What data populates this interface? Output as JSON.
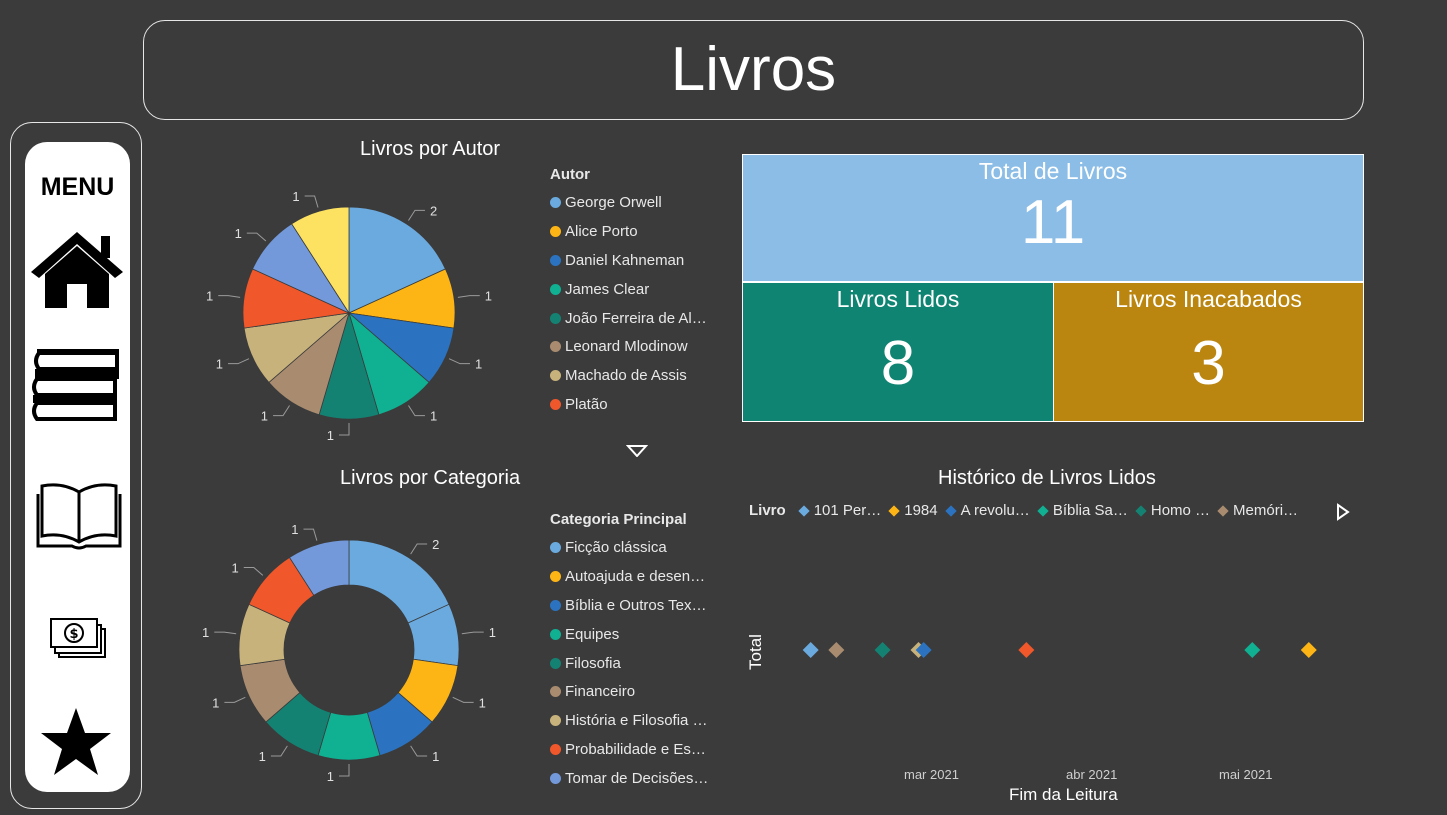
{
  "header": {
    "title": "Livros"
  },
  "sidebar": {
    "menu_label": "MENU",
    "items": [
      {
        "icon": "home-icon"
      },
      {
        "icon": "books-icon"
      },
      {
        "icon": "open-book-icon"
      },
      {
        "icon": "money-icon"
      },
      {
        "icon": "star-icon"
      }
    ]
  },
  "author_chart": {
    "title": "Livros por Autor",
    "legend_title": "Autor",
    "legend": [
      "George Orwell",
      "Alice Porto",
      "Daniel Kahneman",
      "James Clear",
      "João Ferreira de Al…",
      "Leonard Mlodinow",
      "Machado de Assis",
      "Platão"
    ],
    "scroll_icon": "triangle-down-icon"
  },
  "category_chart": {
    "title": "Livros por Categoria",
    "legend_title": "Categoria Principal",
    "legend": [
      "Ficção clássica",
      "Autoajuda e desen…",
      "Bíblia e Outros Tex…",
      "Equipes",
      "Filosofia",
      "Financeiro",
      "História e Filosofia …",
      "Probabilidade e Es…",
      "Tomar de Decisões…"
    ]
  },
  "cards": {
    "total": {
      "label": "Total de Livros",
      "value": "11"
    },
    "read": {
      "label": "Livros Lidos",
      "value": "8"
    },
    "unfinished": {
      "label": "Livros Inacabados",
      "value": "3"
    }
  },
  "history": {
    "title": "Histórico de Livros Lidos",
    "legend_title": "Livro",
    "legend": [
      "101 Per…",
      "1984",
      "A revolu…",
      "Bíblia Sa…",
      "Homo …",
      "Memóri…"
    ],
    "next_icon": "triangle-right-icon",
    "y_label": "Total",
    "x_label": "Fim da Leitura",
    "x_ticks": [
      "mar 2021",
      "abr 2021",
      "mai 2021"
    ]
  },
  "colors": {
    "palette": [
      "#6aaadf",
      "#fdb515",
      "#2b73c0",
      "#10b092",
      "#148272",
      "#a98c70",
      "#c8b27c",
      "#f0572a",
      "#7399db",
      "#fde262"
    ],
    "total_card": "#8bbde6",
    "read_card": "#0f8472",
    "unfinished_card": "#bb8610"
  },
  "chart_data": [
    {
      "type": "pie",
      "title": "Livros por Autor",
      "categories": [
        "George Orwell",
        "Alice Porto",
        "Daniel Kahneman",
        "James Clear",
        "João Ferreira de Al…",
        "Leonard Mlodinow",
        "Machado de Assis",
        "Platão",
        "",
        ""
      ],
      "values": [
        2,
        1,
        1,
        1,
        1,
        1,
        1,
        1,
        1,
        1
      ],
      "colors": [
        "#6aaadf",
        "#fdb515",
        "#2b73c0",
        "#10b092",
        "#148272",
        "#a98c70",
        "#c8b27c",
        "#f0572a",
        "#7399db",
        "#fde262"
      ]
    },
    {
      "type": "pie",
      "donut": true,
      "title": "Livros por Categoria",
      "categories": [
        "Ficção clássica",
        "",
        "Autoajuda e desen…",
        "Bíblia e Outros Tex…",
        "Equipes",
        "Filosofia",
        "Financeiro",
        "História e Filosofia …",
        "Probabilidade e Es…",
        "Tomar de Decisões…"
      ],
      "values": [
        2,
        1,
        1,
        1,
        1,
        1,
        1,
        1,
        1,
        1
      ],
      "colors": [
        "#6aaadf",
        "#6aaadf",
        "#fdb515",
        "#2b73c0",
        "#10b092",
        "#148272",
        "#a98c70",
        "#c8b27c",
        "#f0572a",
        "#7399db"
      ]
    },
    {
      "type": "scatter",
      "title": "Histórico de Livros Lidos",
      "xlabel": "Fim da Leitura",
      "ylabel": "Total",
      "x_range": [
        "2021-02-09",
        "2021-05-31"
      ],
      "x_ticks": [
        "mar 2021",
        "abr 2021",
        "mai 2021"
      ],
      "points": [
        {
          "date": "2021-02-14",
          "color": "#6aaadf"
        },
        {
          "date": "2021-02-19",
          "color": "#a98c70"
        },
        {
          "date": "2021-02-28",
          "color": "#148272"
        },
        {
          "date": "2021-03-07",
          "color": "#c8b27c"
        },
        {
          "date": "2021-03-08",
          "color": "#2b73c0"
        },
        {
          "date": "2021-03-28",
          "color": "#f0572a"
        },
        {
          "date": "2021-05-11",
          "color": "#10b092"
        },
        {
          "date": "2021-05-22",
          "color": "#fdb515"
        }
      ]
    }
  ]
}
